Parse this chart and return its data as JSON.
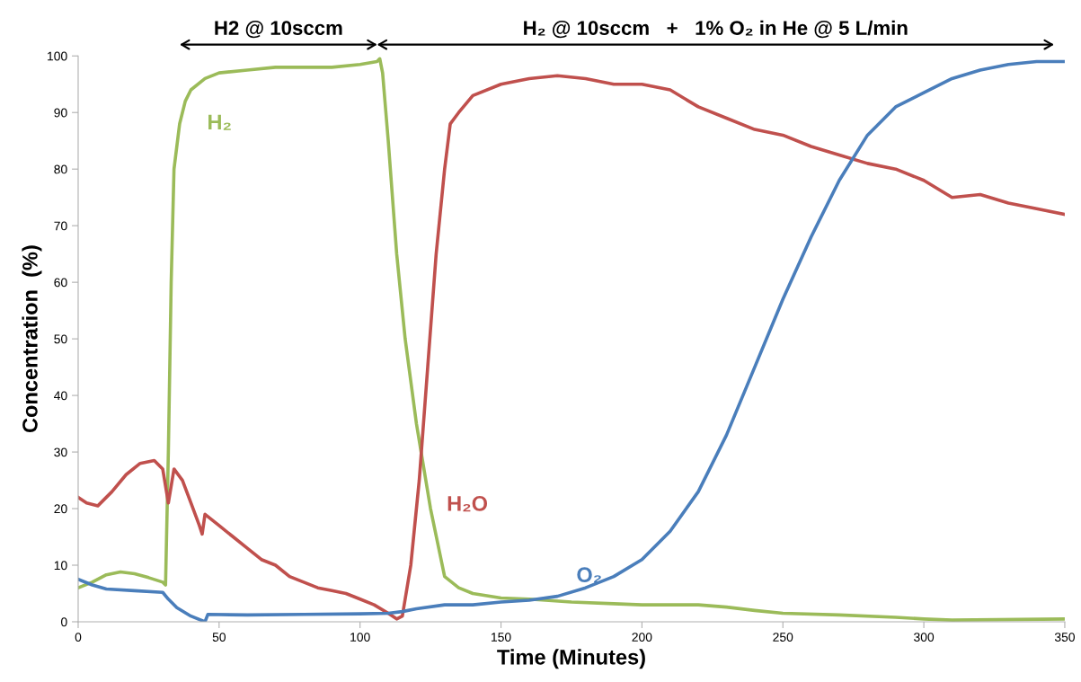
{
  "chart_data": {
    "type": "line",
    "xlabel": "Time (Minutes)",
    "ylabel": "Concentration  (%)",
    "xlim": [
      0,
      350
    ],
    "xticks": [
      0,
      50,
      100,
      150,
      200,
      250,
      300,
      350
    ],
    "ylim": [
      0,
      100
    ],
    "yticks": [
      0,
      10,
      20,
      30,
      40,
      50,
      60,
      70,
      80,
      90,
      100
    ],
    "grid": false,
    "legend": false,
    "marker": "none",
    "line_style": "solid",
    "annotations": [
      "H2 @ 10sccm",
      "H₂ @ 10sccm   +   1% O₂ in He @ 5 L/min"
    ],
    "series": [
      {
        "name": "H₂",
        "color": "#9bbb59",
        "x": [
          0,
          5,
          10,
          15,
          20,
          25,
          30,
          31,
          32,
          33,
          34,
          36,
          38,
          40,
          45,
          50,
          60,
          70,
          80,
          90,
          100,
          106,
          107,
          108,
          110,
          113,
          116,
          120,
          125,
          130,
          135,
          140,
          150,
          160,
          175,
          190,
          200,
          210,
          220,
          230,
          240,
          250,
          270,
          290,
          300,
          310,
          350
        ],
        "values": [
          6,
          7,
          8.3,
          8.8,
          8.5,
          7.8,
          7,
          6.5,
          30,
          60,
          80,
          88,
          92,
          94,
          96,
          97,
          97.5,
          98,
          98,
          98,
          98.5,
          99,
          99.5,
          97,
          85,
          65,
          50,
          35,
          20,
          8,
          6,
          5,
          4.2,
          4,
          3.5,
          3.2,
          3,
          3,
          3,
          2.6,
          2,
          1.5,
          1.2,
          0.8,
          0.5,
          0.3,
          0.5
        ]
      },
      {
        "name": "H₂O",
        "color": "#c0504d",
        "x": [
          0,
          3,
          7,
          12,
          17,
          22,
          27,
          30,
          32,
          34,
          37,
          40,
          43,
          44,
          45,
          50,
          55,
          60,
          65,
          70,
          75,
          80,
          85,
          90,
          95,
          100,
          105,
          110,
          113,
          115,
          118,
          121,
          124,
          127,
          130,
          132,
          135,
          140,
          150,
          160,
          170,
          180,
          190,
          200,
          210,
          220,
          230,
          240,
          250,
          260,
          270,
          280,
          290,
          300,
          310,
          320,
          330,
          340,
          350
        ],
        "values": [
          22,
          21,
          20.5,
          23,
          26,
          28,
          28.5,
          27,
          21,
          27,
          25,
          21,
          17,
          15.5,
          19,
          17,
          15,
          13,
          11,
          10,
          8,
          7,
          6,
          5.5,
          5,
          4,
          3,
          1.5,
          0.5,
          1,
          10,
          25,
          45,
          65,
          80,
          88,
          90,
          93,
          95,
          96,
          96.5,
          96,
          95,
          95,
          94,
          91,
          89,
          87,
          86,
          84,
          82.5,
          81,
          80,
          78,
          75,
          75.5,
          74,
          73,
          72
        ]
      },
      {
        "name": "O₂",
        "color": "#4a7ebb",
        "x": [
          0,
          5,
          10,
          20,
          30,
          32,
          35,
          40,
          45,
          46,
          60,
          80,
          100,
          110,
          115,
          120,
          130,
          140,
          150,
          160,
          170,
          180,
          190,
          200,
          210,
          220,
          230,
          240,
          250,
          260,
          270,
          280,
          290,
          300,
          310,
          320,
          330,
          340,
          350
        ],
        "values": [
          7.5,
          6.5,
          5.8,
          5.5,
          5.2,
          4,
          2.5,
          1,
          0,
          1.3,
          1.2,
          1.3,
          1.4,
          1.5,
          1.8,
          2.3,
          3,
          3,
          3.5,
          3.8,
          4.5,
          6,
          8,
          11,
          16,
          23,
          33,
          45,
          57,
          68,
          78,
          86,
          91,
          93.5,
          96,
          97.5,
          98.5,
          99,
          99
        ]
      }
    ]
  }
}
